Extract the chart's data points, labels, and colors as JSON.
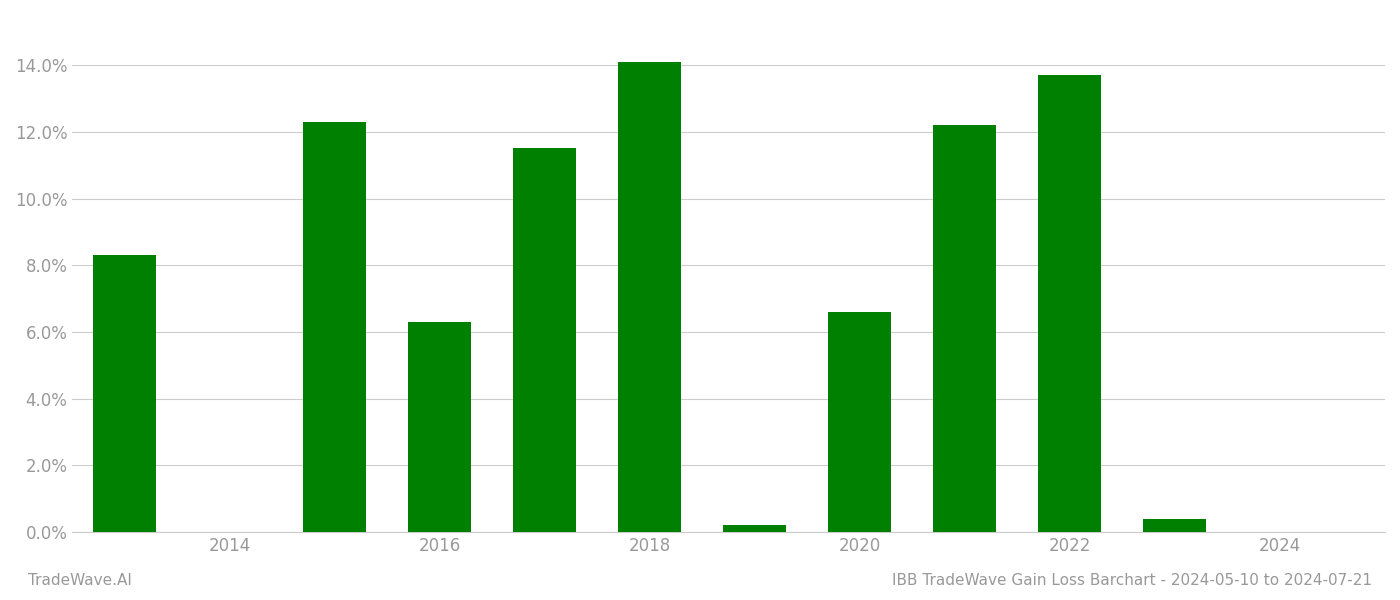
{
  "years": [
    2013,
    2015,
    2016,
    2017,
    2018,
    2019,
    2020,
    2021,
    2022,
    2023,
    2024
  ],
  "values": [
    0.083,
    0.123,
    0.063,
    0.115,
    0.141,
    0.002,
    0.066,
    0.122,
    0.137,
    0.004,
    0.0
  ],
  "bar_color": "#008000",
  "title": "IBB TradeWave Gain Loss Barchart - 2024-05-10 to 2024-07-21",
  "watermark": "TradeWave.AI",
  "ylim": [
    0,
    0.155
  ],
  "xlim": [
    2012.5,
    2025.0
  ],
  "xtick_positions": [
    2014,
    2016,
    2018,
    2020,
    2022,
    2024
  ],
  "xtick_labels": [
    "2014",
    "2016",
    "2018",
    "2020",
    "2022",
    "2024"
  ],
  "background_color": "#ffffff",
  "grid_color": "#cccccc",
  "title_fontsize": 11,
  "tick_fontsize": 12,
  "watermark_fontsize": 11,
  "bar_width": 0.6
}
